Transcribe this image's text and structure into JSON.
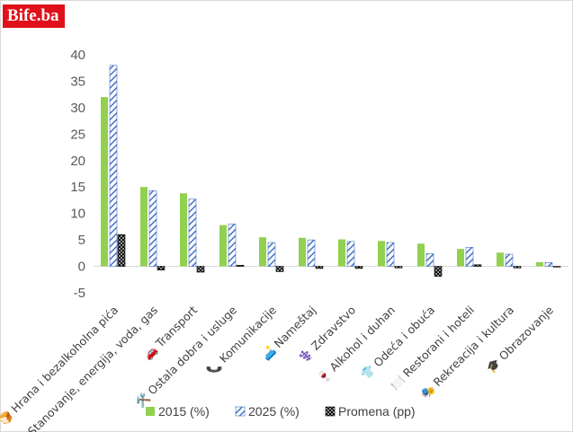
{
  "brand": {
    "logo_text": "Bife.ba"
  },
  "chart_data": {
    "type": "bar",
    "ylim": [
      -5,
      40
    ],
    "yticks": [
      40,
      35,
      30,
      25,
      20,
      15,
      10,
      5,
      0,
      -5
    ],
    "gridlines": false,
    "legend_position": "bottom",
    "categories": [
      "🍞 Hrana i bezalkoholna pića",
      "🏠 Stanovanje, energija, voda, gas",
      "🚗 Transport",
      "🛠️ Ostala dobra i usluge",
      "📞 Komunikacije",
      "🛋️ Nameštaj",
      "⚕️ Zdravstvo",
      "🍷 Alkohol i duhan",
      "👕 Odeća i obuća",
      "🍽️ Restorani i hoteli",
      "🎭 Rekreacija i kultura",
      "🎓 Obrazovanje"
    ],
    "series": [
      {
        "name": "2015 (%)",
        "style": "solid",
        "color": "#92d050",
        "values": [
          32,
          15,
          13.8,
          7.8,
          5.5,
          5.4,
          5.1,
          4.8,
          4.3,
          3.3,
          2.6,
          0.8
        ]
      },
      {
        "name": "2025 (%)",
        "style": "diagonal-hatch",
        "color": "#4472c4",
        "values": [
          38,
          14.3,
          12.7,
          8,
          4.5,
          5,
          4.7,
          4.5,
          2.4,
          3.6,
          2.3,
          0.7
        ]
      },
      {
        "name": "Promena (pp)",
        "style": "dotted",
        "color": "#000000",
        "values": [
          6,
          -0.7,
          -1.1,
          0.2,
          -1,
          -0.4,
          -0.4,
          -0.3,
          -1.9,
          0.3,
          -0.3,
          -0.1
        ]
      }
    ]
  }
}
